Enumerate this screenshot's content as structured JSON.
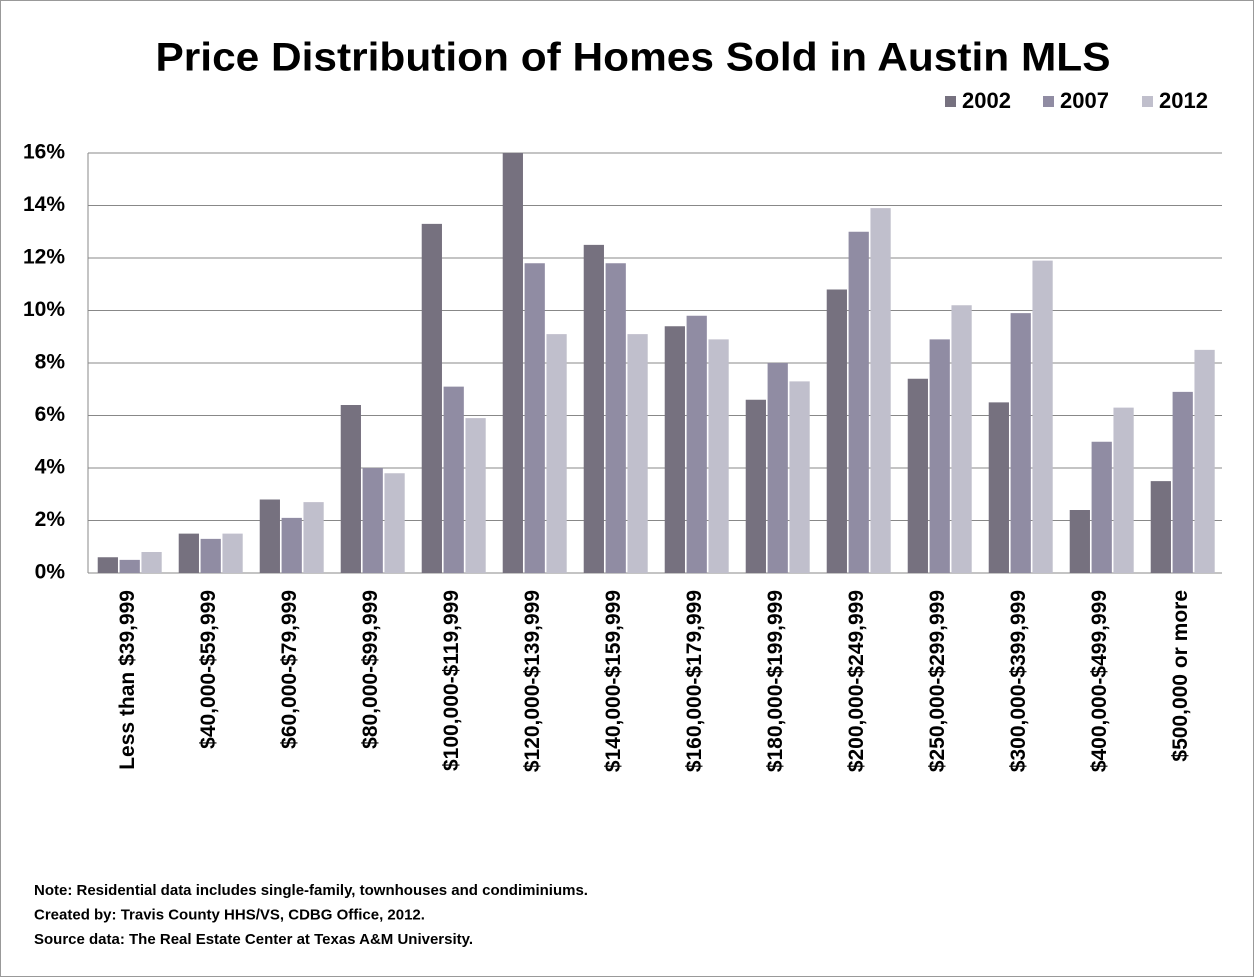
{
  "chart_data": {
    "type": "bar",
    "title": "Price Distribution of Homes Sold in Austin MLS",
    "categories": [
      "Less than $39,999",
      "$40,000-$59,999",
      "$60,000-$79,999",
      "$80,000-$99,999",
      "$100,000-$119,999",
      "$120,000-$139,999",
      "$140,000-$159,999",
      "$160,000-$179,999",
      "$180,000-$199,999",
      "$200,000-$249,999",
      "$250,000-$299,999",
      "$300,000-$399,999",
      "$400,000-$499,999",
      "$500,000 or more"
    ],
    "series": [
      {
        "name": "2002",
        "color": "#76717f",
        "values": [
          0.6,
          1.5,
          2.8,
          6.4,
          13.3,
          16.0,
          12.5,
          9.4,
          6.6,
          10.8,
          7.4,
          6.5,
          2.4,
          3.5
        ]
      },
      {
        "name": "2007",
        "color": "#908ca3",
        "values": [
          0.5,
          1.3,
          2.1,
          4.0,
          7.1,
          11.8,
          11.8,
          9.8,
          8.0,
          13.0,
          8.9,
          9.9,
          5.0,
          6.9
        ]
      },
      {
        "name": "2012",
        "color": "#c0bfcc",
        "values": [
          0.8,
          1.5,
          2.7,
          3.8,
          5.9,
          9.1,
          9.1,
          8.9,
          7.3,
          13.9,
          10.2,
          11.9,
          6.3,
          8.5
        ]
      }
    ],
    "ylim": [
      0,
      16
    ],
    "yticks": [
      {
        "value": 0,
        "label": "0%"
      },
      {
        "value": 2,
        "label": "2%"
      },
      {
        "value": 4,
        "label": "4%"
      },
      {
        "value": 6,
        "label": "6%"
      },
      {
        "value": 8,
        "label": "8%"
      },
      {
        "value": 10,
        "label": "10%"
      },
      {
        "value": 12,
        "label": "12%"
      },
      {
        "value": 14,
        "label": "14%"
      },
      {
        "value": 16,
        "label": "16%"
      }
    ],
    "grid": true,
    "legend": "top-right",
    "notes": [
      "Note:  Residential data includes single-family, townhouses and condiminiums.",
      "Created by: Travis County HHS/VS, CDBG  Office, 2012.",
      "Source data: The Real Estate Center at Texas A&M University."
    ]
  }
}
